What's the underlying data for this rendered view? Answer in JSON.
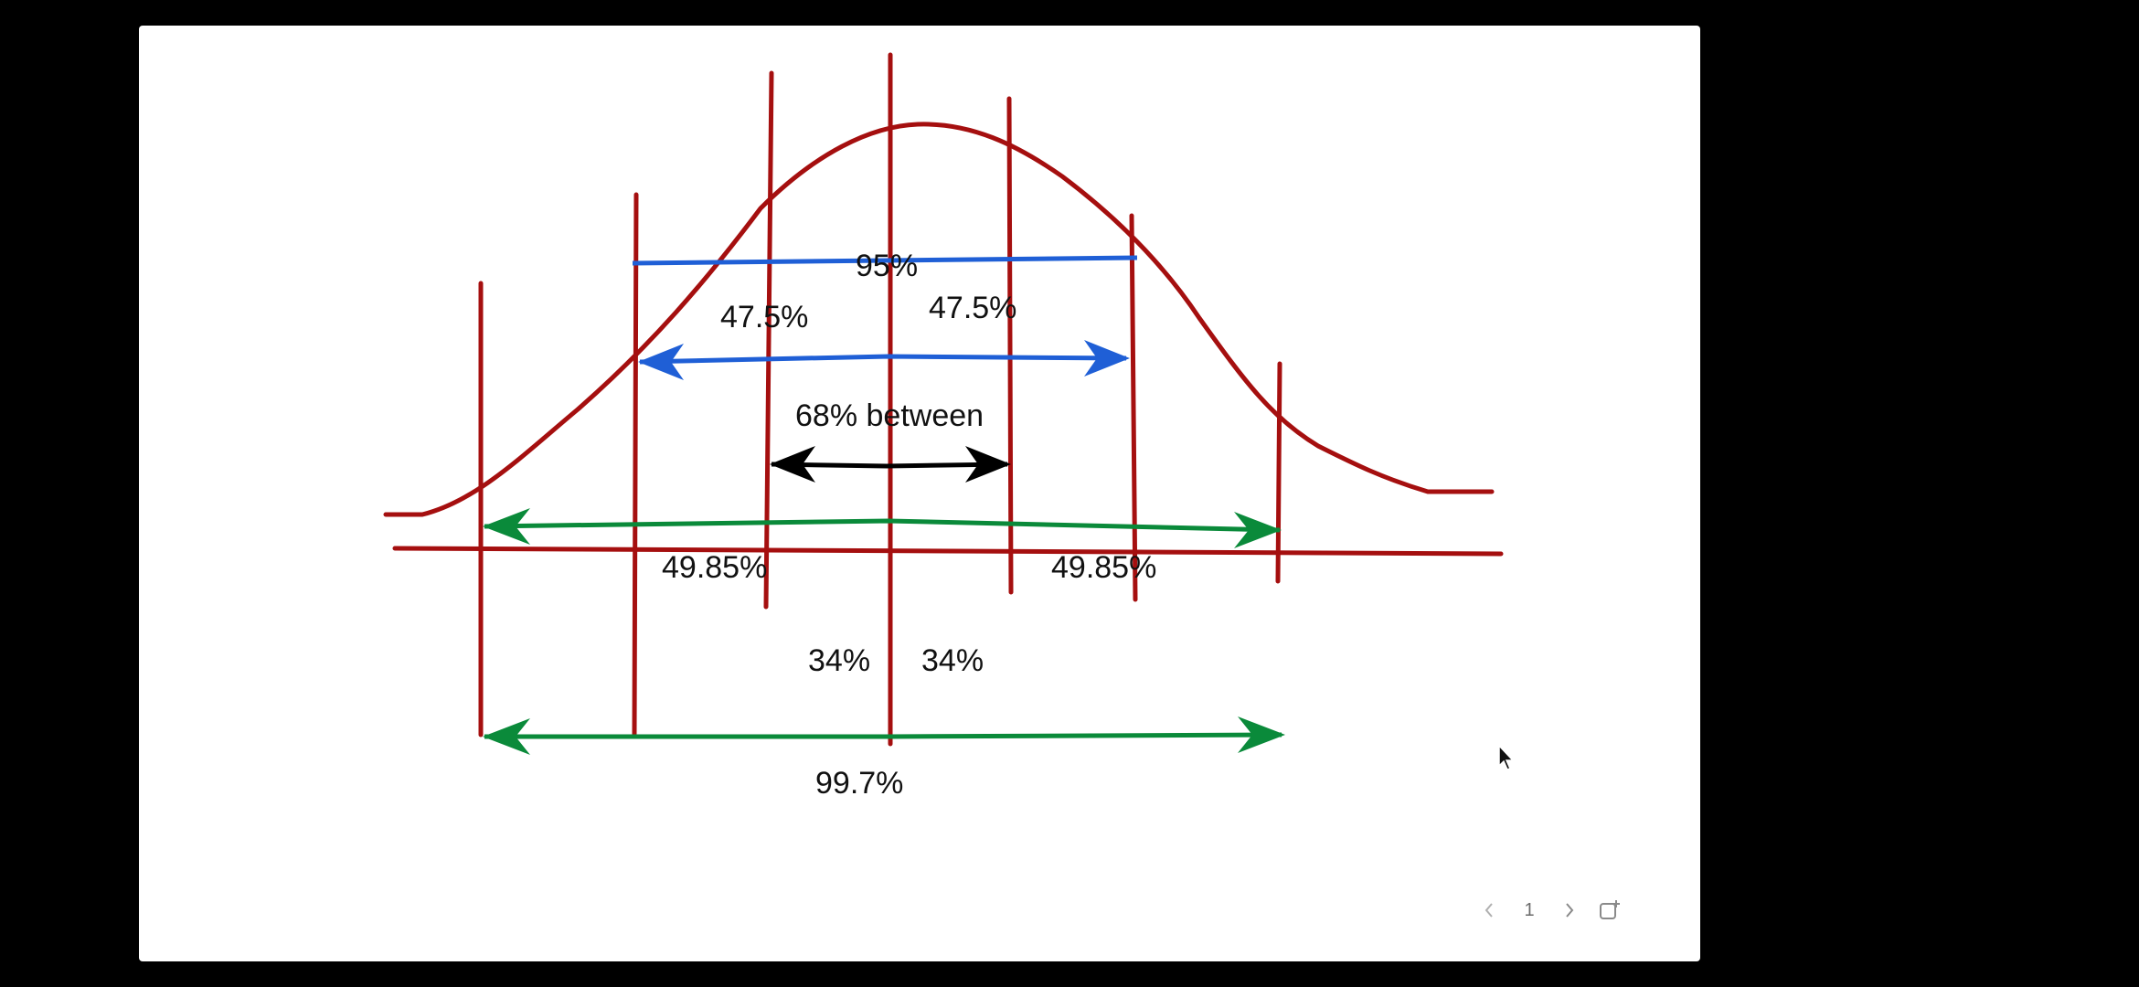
{
  "diagram": {
    "labels": {
      "pct_95": "95%",
      "pct_47_5_left": "47.5%",
      "pct_47_5_right": "47.5%",
      "pct_68_between": "68% between",
      "pct_49_85_left": "49.85%",
      "pct_49_85_right": "49.85%",
      "pct_34_left": "34%",
      "pct_34_right": "34%",
      "pct_99_7": "99.7%"
    },
    "colors": {
      "curve": "#a50f0f",
      "blue_arrow": "#1f5fd6",
      "black_arrow": "#000000",
      "green_arrow": "#0a8a3a",
      "slide_background": "#ffffff",
      "screen_background": "#000000"
    }
  },
  "pager": {
    "prev_icon": "chevron-left-icon",
    "page_number": "1",
    "next_icon": "chevron-right-icon",
    "share_icon": "share-icon"
  }
}
